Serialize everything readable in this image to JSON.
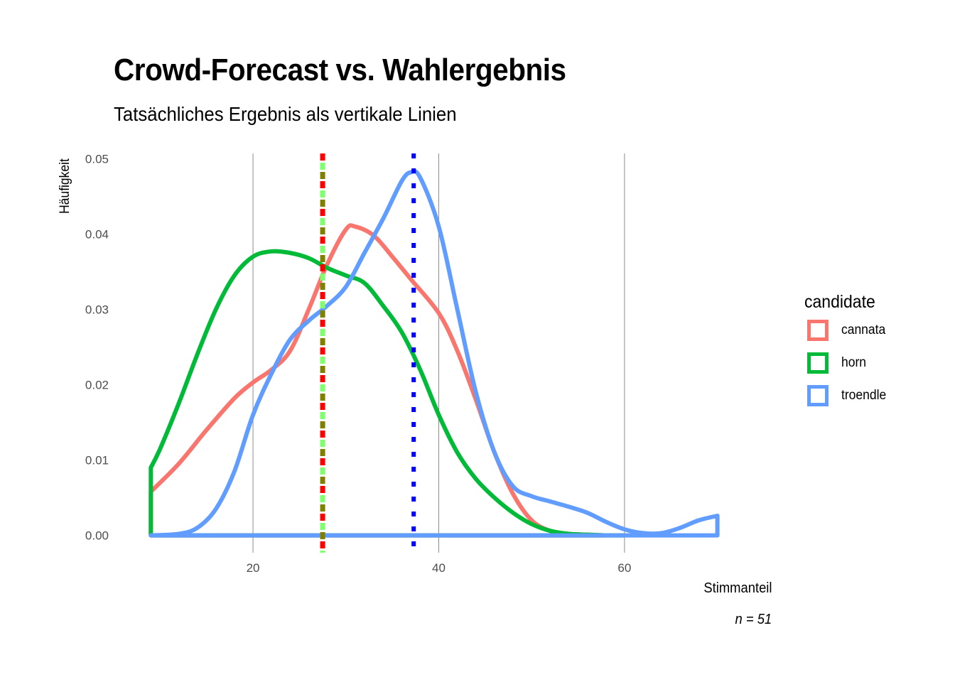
{
  "chart_data": {
    "type": "area",
    "title": "Crowd-Forecast vs. Wahlergebnis",
    "subtitle": "Tatsächliches Ergebnis als vertikale Linien",
    "xlabel": "Stimmanteil",
    "ylabel": "Häufigkeit",
    "caption": "n = 51",
    "xlim": [
      5,
      76
    ],
    "ylim": [
      -0.0023,
      0.0507
    ],
    "x_ticks": [
      20,
      40,
      60
    ],
    "x_tick_labels": [
      "20",
      "40",
      "60"
    ],
    "y_ticks": [
      0,
      0.01,
      0.02,
      0.03,
      0.04,
      0.05
    ],
    "y_tick_labels": [
      "0.00",
      "0.01",
      "0.02",
      "0.03",
      "0.04",
      "0.05"
    ],
    "grid": "vertical-major",
    "legend": {
      "title": "candidate",
      "position": "right",
      "entries": [
        "cannata",
        "horn",
        "troendle"
      ]
    },
    "series": [
      {
        "name": "cannata",
        "color": "#F8766D",
        "x": [
          9,
          12,
          15,
          18,
          20,
          22,
          24,
          26,
          28,
          30,
          31,
          33,
          35,
          37,
          40,
          42,
          44,
          46,
          48,
          50,
          52,
          54,
          56,
          58
        ],
        "y": [
          0.0058,
          0.0095,
          0.014,
          0.0182,
          0.0203,
          0.022,
          0.0245,
          0.03,
          0.036,
          0.0406,
          0.041,
          0.0398,
          0.037,
          0.034,
          0.0295,
          0.0245,
          0.018,
          0.011,
          0.0055,
          0.002,
          0.0006,
          0.0002,
          0.0001,
          0.0
        ]
      },
      {
        "name": "horn",
        "color": "#00BA38",
        "x": [
          9,
          10,
          12,
          14,
          16,
          18,
          20,
          22,
          24,
          26,
          28,
          30,
          32,
          34,
          36,
          38,
          40,
          42,
          44,
          46,
          48,
          50,
          52,
          54,
          56,
          58,
          60
        ],
        "y": [
          0.009,
          0.0115,
          0.0175,
          0.024,
          0.03,
          0.0345,
          0.037,
          0.0377,
          0.0375,
          0.0368,
          0.0355,
          0.0345,
          0.0335,
          0.0305,
          0.027,
          0.022,
          0.016,
          0.011,
          0.0075,
          0.005,
          0.003,
          0.0015,
          0.0006,
          0.0002,
          0.0001,
          0.0,
          0.0
        ]
      },
      {
        "name": "troendle",
        "color": "#619CFF",
        "x": [
          9,
          12,
          14,
          16,
          18,
          20,
          22,
          24,
          26,
          28,
          30,
          32,
          34,
          36,
          37,
          38,
          40,
          42,
          44,
          46,
          48,
          50,
          52,
          54,
          56,
          58,
          60,
          62,
          64,
          66,
          68,
          70
        ],
        "y": [
          0.0,
          0.0002,
          0.001,
          0.0035,
          0.0085,
          0.016,
          0.0215,
          0.026,
          0.0285,
          0.0305,
          0.033,
          0.0375,
          0.042,
          0.047,
          0.0482,
          0.0475,
          0.041,
          0.03,
          0.019,
          0.011,
          0.0065,
          0.0052,
          0.0045,
          0.0038,
          0.003,
          0.0018,
          0.0008,
          0.0003,
          0.0003,
          0.001,
          0.002,
          0.0026
        ]
      }
    ],
    "reference_lines": [
      {
        "name": "cannata",
        "x": 27.5,
        "style": "dashed",
        "colors": [
          "#FF0000",
          "#80FF6E",
          "#7F7F00"
        ]
      },
      {
        "name": "troendle",
        "x": 37.3,
        "style": "dotted",
        "colors": [
          "#0000FF"
        ]
      }
    ]
  }
}
